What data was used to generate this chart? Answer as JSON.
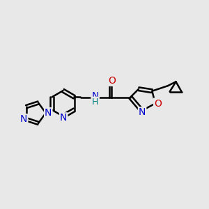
{
  "bg_color": "#e8e8e8",
  "bond_color": "#000000",
  "bond_width": 1.8,
  "font_size": 10,
  "fig_width": 3.0,
  "fig_height": 3.0,
  "xlim": [
    0,
    10
  ],
  "ylim": [
    0,
    10
  ],
  "n_color": "#0000cc",
  "o_color": "#cc0000",
  "nh_color": "#008080"
}
